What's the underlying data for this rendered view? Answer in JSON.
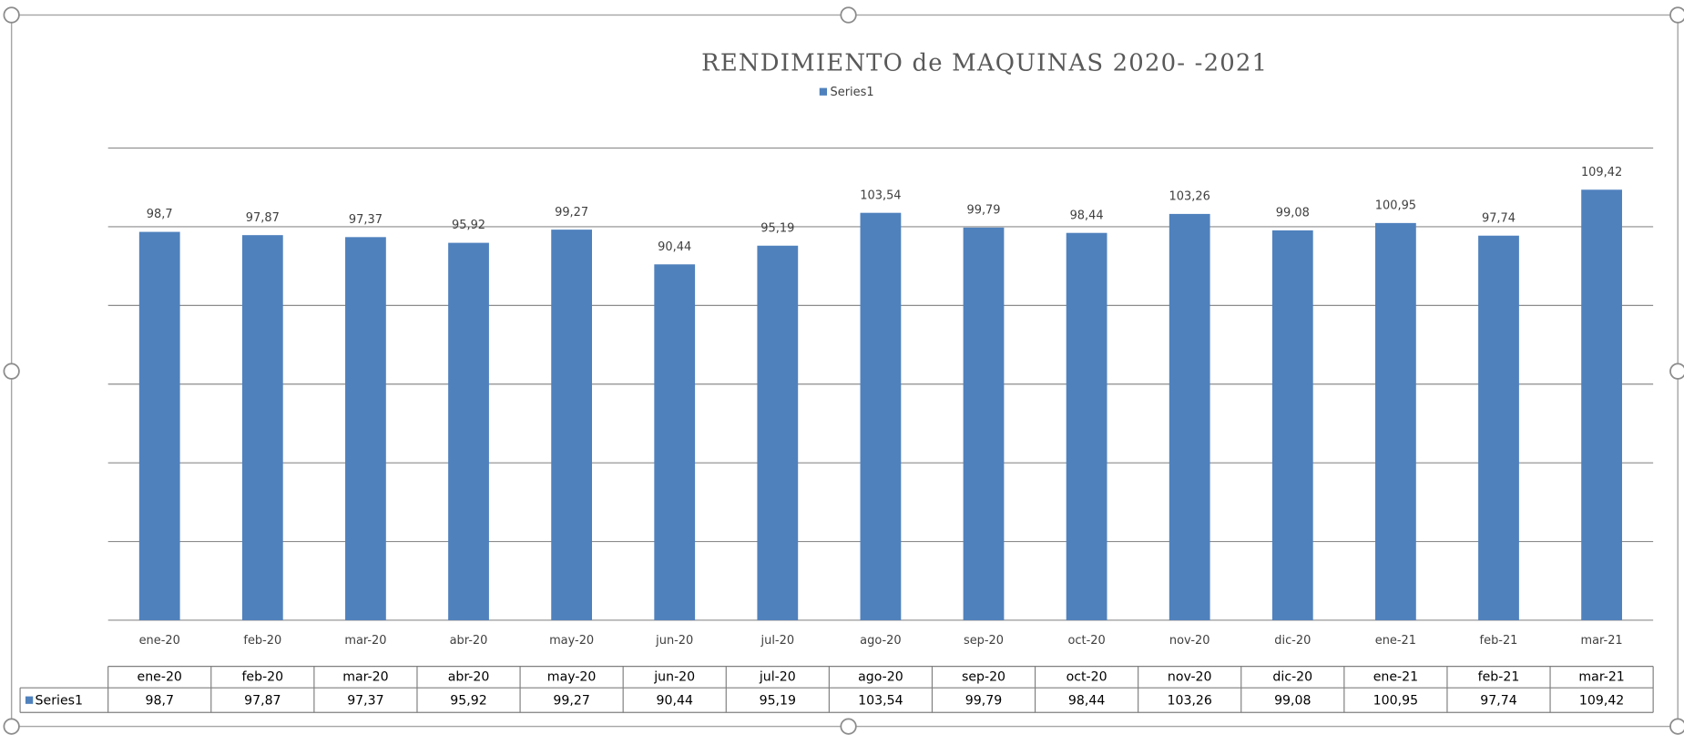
{
  "chart_data": {
    "type": "bar",
    "title": "RENDIMIENTO de MAQUINAS 2020- -2021",
    "categories": [
      "ene-20",
      "feb-20",
      "mar-20",
      "abr-20",
      "may-20",
      "jun-20",
      "jul-20",
      "ago-20",
      "sep-20",
      "oct-20",
      "nov-20",
      "dic-20",
      "ene-21",
      "feb-21",
      "mar-21"
    ],
    "series": [
      {
        "name": "Series1",
        "color": "#4f81bd",
        "values": [
          98.7,
          97.87,
          97.37,
          95.92,
          99.27,
          90.44,
          95.19,
          103.54,
          99.79,
          98.44,
          103.26,
          99.08,
          100.95,
          97.74,
          109.42
        ],
        "value_labels": [
          "98,7",
          "97,87",
          "97,37",
          "95,92",
          "99,27",
          "90,44",
          "95,19",
          "103,54",
          "99,79",
          "98,44",
          "103,26",
          "99,08",
          "100,95",
          "97,74",
          "109,42"
        ]
      }
    ],
    "ylim": [
      0,
      120
    ],
    "yticks": [
      0,
      20,
      40,
      60,
      80,
      100,
      120
    ],
    "grid": true,
    "legend": "top",
    "data_table": true
  }
}
